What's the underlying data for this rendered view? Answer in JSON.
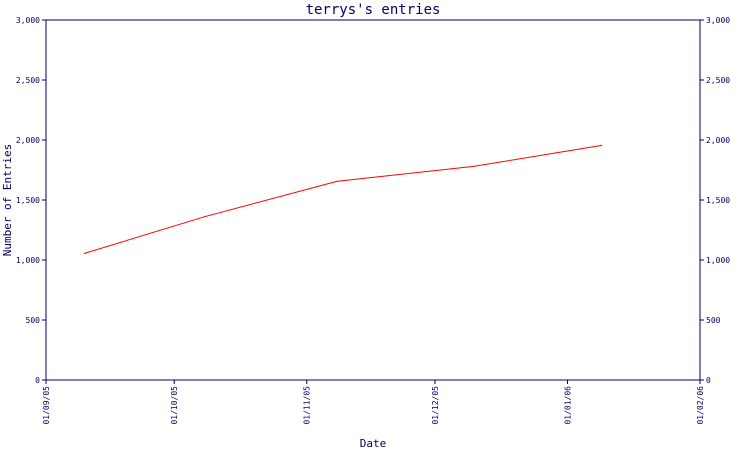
{
  "chart_data": {
    "type": "line",
    "title": "terrys's entries",
    "xlabel": "Date",
    "ylabel": "Number of Entries",
    "ylim": [
      0,
      3000
    ],
    "xlim": [
      "2005-09-01",
      "2006-02-01"
    ],
    "y_ticks": [
      {
        "value": 0,
        "label": "0"
      },
      {
        "value": 500,
        "label": "500"
      },
      {
        "value": 1000,
        "label": "1,000"
      },
      {
        "value": 1500,
        "label": "1,500"
      },
      {
        "value": 2000,
        "label": "2,000"
      },
      {
        "value": 2500,
        "label": "2,500"
      },
      {
        "value": 3000,
        "label": "3,000"
      }
    ],
    "x_ticks": [
      {
        "value": "2005-09-01",
        "label": "01/09/05"
      },
      {
        "value": "2005-10-01",
        "label": "01/10/05"
      },
      {
        "value": "2005-11-01",
        "label": "01/11/05"
      },
      {
        "value": "2005-12-01",
        "label": "01/12/05"
      },
      {
        "value": "2006-01-01",
        "label": "01/01/06"
      },
      {
        "value": "2006-02-01",
        "label": "01/02/06"
      }
    ],
    "grid": false,
    "legend": "none",
    "colors": {
      "axis": "#000066",
      "line": "#ff0000",
      "background": "#ffffff"
    },
    "series": [
      {
        "points": [
          {
            "x": "2005-09-10",
            "y": 1055
          },
          {
            "x": "2005-10-08",
            "y": 1360
          },
          {
            "x": "2005-11-08",
            "y": 1655
          },
          {
            "x": "2005-12-10",
            "y": 1780
          },
          {
            "x": "2006-01-09",
            "y": 1955
          }
        ]
      }
    ]
  }
}
